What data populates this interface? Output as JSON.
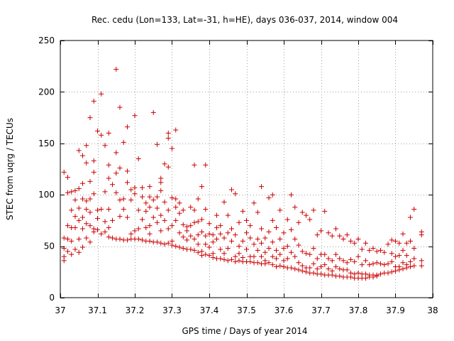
{
  "chart_data": {
    "type": "scatter",
    "title": "Rec. cedu (Lon=133, Lat=-31, h=HE), days 036-037, 2014, window 004",
    "xlabel": "GPS time / Days of year 2014",
    "ylabel": "STEC from uqrg / TECUs",
    "xlim": [
      37,
      38
    ],
    "ylim": [
      0,
      250
    ],
    "xticks": [
      37,
      37.1,
      37.2,
      37.3,
      37.4,
      37.5,
      37.6,
      37.7,
      37.8,
      37.9,
      38
    ],
    "xtick_labels": [
      "37",
      "37.1",
      "37.2",
      "37.3",
      "37.4",
      "37.5",
      "37.6",
      "37.7",
      "37.8",
      "37.9",
      "38"
    ],
    "yticks": [
      0,
      50,
      100,
      150,
      200,
      250
    ],
    "ytick_labels": [
      "0",
      "50",
      "100",
      "150",
      "200",
      "250"
    ],
    "grid": true,
    "marker": "+",
    "color": "#cc0000",
    "points": [
      [
        37.01,
        122
      ],
      [
        37.01,
        58
      ],
      [
        37.01,
        48
      ],
      [
        37.01,
        40
      ],
      [
        37.01,
        36
      ],
      [
        37.02,
        117
      ],
      [
        37.02,
        102
      ],
      [
        37.02,
        70
      ],
      [
        37.02,
        57
      ],
      [
        37.02,
        45
      ],
      [
        37.03,
        103
      ],
      [
        37.03,
        85
      ],
      [
        37.03,
        68
      ],
      [
        37.03,
        55
      ],
      [
        37.03,
        42
      ],
      [
        37.04,
        104
      ],
      [
        37.04,
        95
      ],
      [
        37.04,
        79
      ],
      [
        37.04,
        68
      ],
      [
        37.04,
        47
      ],
      [
        37.05,
        143
      ],
      [
        37.05,
        106
      ],
      [
        37.05,
        87
      ],
      [
        37.05,
        75
      ],
      [
        37.05,
        57
      ],
      [
        37.05,
        44
      ],
      [
        37.06,
        138
      ],
      [
        37.06,
        111
      ],
      [
        37.06,
        96
      ],
      [
        37.06,
        78
      ],
      [
        37.06,
        67
      ],
      [
        37.06,
        49
      ],
      [
        37.07,
        148
      ],
      [
        37.07,
        131
      ],
      [
        37.07,
        94
      ],
      [
        37.07,
        86
      ],
      [
        37.07,
        72
      ],
      [
        37.07,
        58
      ],
      [
        37.08,
        175
      ],
      [
        37.08,
        113
      ],
      [
        37.08,
        96
      ],
      [
        37.08,
        83
      ],
      [
        37.08,
        70
      ],
      [
        37.08,
        54
      ],
      [
        37.09,
        191
      ],
      [
        37.09,
        133
      ],
      [
        37.09,
        122
      ],
      [
        37.09,
        101
      ],
      [
        37.09,
        67
      ],
      [
        37.09,
        64
      ],
      [
        37.1,
        162
      ],
      [
        37.1,
        85
      ],
      [
        37.1,
        77
      ],
      [
        37.1,
        66
      ],
      [
        37.11,
        198
      ],
      [
        37.11,
        158
      ],
      [
        37.11,
        86
      ],
      [
        37.11,
        62
      ],
      [
        37.12,
        148
      ],
      [
        37.12,
        103
      ],
      [
        37.12,
        74
      ],
      [
        37.12,
        64
      ],
      [
        37.13,
        160
      ],
      [
        37.13,
        129
      ],
      [
        37.13,
        116
      ],
      [
        37.13,
        86
      ],
      [
        37.13,
        68
      ],
      [
        37.13,
        59
      ],
      [
        37.14,
        110
      ],
      [
        37.14,
        75
      ],
      [
        37.14,
        58
      ],
      [
        37.15,
        222
      ],
      [
        37.15,
        141
      ],
      [
        37.15,
        121
      ],
      [
        37.15,
        102
      ],
      [
        37.15,
        57
      ],
      [
        37.16,
        185
      ],
      [
        37.16,
        126
      ],
      [
        37.16,
        95
      ],
      [
        37.16,
        79
      ],
      [
        37.16,
        57
      ],
      [
        37.17,
        151
      ],
      [
        37.17,
        96
      ],
      [
        37.17,
        86
      ],
      [
        37.17,
        56
      ],
      [
        37.18,
        166
      ],
      [
        37.18,
        123
      ],
      [
        37.18,
        112
      ],
      [
        37.18,
        78
      ],
      [
        37.18,
        56
      ],
      [
        37.19,
        105
      ],
      [
        37.19,
        95
      ],
      [
        37.19,
        62
      ],
      [
        37.19,
        57
      ],
      [
        37.2,
        177
      ],
      [
        37.2,
        107
      ],
      [
        37.2,
        101
      ],
      [
        37.2,
        65
      ],
      [
        37.2,
        57
      ],
      [
        37.21,
        135
      ],
      [
        37.21,
        85
      ],
      [
        37.21,
        67
      ],
      [
        37.21,
        57
      ],
      [
        37.22,
        107
      ],
      [
        37.22,
        98
      ],
      [
        37.22,
        76
      ],
      [
        37.22,
        56
      ],
      [
        37.23,
        92
      ],
      [
        37.23,
        84
      ],
      [
        37.23,
        68
      ],
      [
        37.23,
        55
      ],
      [
        37.24,
        108
      ],
      [
        37.24,
        98
      ],
      [
        37.24,
        88
      ],
      [
        37.24,
        70
      ],
      [
        37.24,
        62
      ],
      [
        37.24,
        55
      ],
      [
        37.25,
        180
      ],
      [
        37.25,
        95
      ],
      [
        37.25,
        78
      ],
      [
        37.25,
        54
      ],
      [
        37.26,
        149
      ],
      [
        37.26,
        98
      ],
      [
        37.26,
        87
      ],
      [
        37.26,
        73
      ],
      [
        37.26,
        54
      ],
      [
        37.27,
        116
      ],
      [
        37.27,
        112
      ],
      [
        37.27,
        104
      ],
      [
        37.27,
        80
      ],
      [
        37.27,
        65
      ],
      [
        37.27,
        53
      ],
      [
        37.28,
        130
      ],
      [
        37.28,
        93
      ],
      [
        37.28,
        75
      ],
      [
        37.28,
        52
      ],
      [
        37.29,
        160
      ],
      [
        37.29,
        155
      ],
      [
        37.29,
        127
      ],
      [
        37.29,
        85
      ],
      [
        37.29,
        67
      ],
      [
        37.29,
        53
      ],
      [
        37.3,
        145
      ],
      [
        37.3,
        97
      ],
      [
        37.3,
        70
      ],
      [
        37.3,
        55
      ],
      [
        37.3,
        51
      ],
      [
        37.31,
        163
      ],
      [
        37.31,
        96
      ],
      [
        37.31,
        88
      ],
      [
        37.31,
        75
      ],
      [
        37.31,
        50
      ],
      [
        37.32,
        92
      ],
      [
        37.32,
        82
      ],
      [
        37.32,
        63
      ],
      [
        37.32,
        49
      ],
      [
        37.33,
        85
      ],
      [
        37.33,
        71
      ],
      [
        37.33,
        59
      ],
      [
        37.33,
        48
      ],
      [
        37.34,
        69
      ],
      [
        37.34,
        65
      ],
      [
        37.34,
        56
      ],
      [
        37.34,
        47
      ],
      [
        37.35,
        88
      ],
      [
        37.35,
        70
      ],
      [
        37.35,
        60
      ],
      [
        37.35,
        47
      ],
      [
        37.36,
        129
      ],
      [
        37.36,
        85
      ],
      [
        37.36,
        73
      ],
      [
        37.36,
        57
      ],
      [
        37.36,
        46
      ],
      [
        37.37,
        96
      ],
      [
        37.37,
        74
      ],
      [
        37.37,
        61
      ],
      [
        37.37,
        52
      ],
      [
        37.37,
        44
      ],
      [
        37.38,
        108
      ],
      [
        37.38,
        76
      ],
      [
        37.38,
        64
      ],
      [
        37.38,
        45
      ],
      [
        37.38,
        41
      ],
      [
        37.39,
        129
      ],
      [
        37.39,
        86
      ],
      [
        37.39,
        60
      ],
      [
        37.39,
        52
      ],
      [
        37.39,
        42
      ],
      [
        37.4,
        72
      ],
      [
        37.4,
        62
      ],
      [
        37.4,
        49
      ],
      [
        37.4,
        41
      ],
      [
        37.41,
        61
      ],
      [
        37.41,
        54
      ],
      [
        37.41,
        43
      ],
      [
        37.41,
        39
      ],
      [
        37.42,
        80
      ],
      [
        37.42,
        68
      ],
      [
        37.42,
        57
      ],
      [
        37.42,
        38
      ],
      [
        37.43,
        70
      ],
      [
        37.43,
        62
      ],
      [
        37.43,
        47
      ],
      [
        37.43,
        38
      ],
      [
        37.44,
        93
      ],
      [
        37.44,
        58
      ],
      [
        37.44,
        43
      ],
      [
        37.44,
        37
      ],
      [
        37.45,
        80
      ],
      [
        37.45,
        63
      ],
      [
        37.45,
        48
      ],
      [
        37.45,
        36
      ],
      [
        37.46,
        105
      ],
      [
        37.46,
        67
      ],
      [
        37.46,
        55
      ],
      [
        37.46,
        37
      ],
      [
        37.47,
        101
      ],
      [
        37.47,
        61
      ],
      [
        37.47,
        40
      ],
      [
        37.47,
        35
      ],
      [
        37.48,
        73
      ],
      [
        37.48,
        50
      ],
      [
        37.48,
        43
      ],
      [
        37.48,
        36
      ],
      [
        37.49,
        84
      ],
      [
        37.49,
        55
      ],
      [
        37.49,
        39
      ],
      [
        37.49,
        35
      ],
      [
        37.5,
        75
      ],
      [
        37.5,
        63
      ],
      [
        37.5,
        47
      ],
      [
        37.5,
        35
      ],
      [
        37.51,
        70
      ],
      [
        37.51,
        58
      ],
      [
        37.51,
        40
      ],
      [
        37.51,
        35
      ],
      [
        37.52,
        92
      ],
      [
        37.52,
        52
      ],
      [
        37.52,
        40
      ],
      [
        37.52,
        34
      ],
      [
        37.53,
        83
      ],
      [
        37.53,
        57
      ],
      [
        37.53,
        46
      ],
      [
        37.53,
        34
      ],
      [
        37.54,
        108
      ],
      [
        37.54,
        67
      ],
      [
        37.54,
        53
      ],
      [
        37.54,
        40
      ],
      [
        37.54,
        33
      ],
      [
        37.55,
        58
      ],
      [
        37.55,
        44
      ],
      [
        37.55,
        36
      ],
      [
        37.55,
        33
      ],
      [
        37.56,
        97
      ],
      [
        37.56,
        64
      ],
      [
        37.56,
        48
      ],
      [
        37.56,
        34
      ],
      [
        37.57,
        100
      ],
      [
        37.57,
        75
      ],
      [
        37.57,
        54
      ],
      [
        37.57,
        40
      ],
      [
        37.57,
        32
      ],
      [
        37.58,
        68
      ],
      [
        37.58,
        46
      ],
      [
        37.58,
        38
      ],
      [
        37.58,
        30
      ],
      [
        37.59,
        85
      ],
      [
        37.59,
        57
      ],
      [
        37.59,
        42
      ],
      [
        37.59,
        31
      ],
      [
        37.6,
        63
      ],
      [
        37.6,
        48
      ],
      [
        37.6,
        36
      ],
      [
        37.6,
        30
      ],
      [
        37.61,
        76
      ],
      [
        37.61,
        50
      ],
      [
        37.61,
        38
      ],
      [
        37.61,
        29
      ],
      [
        37.62,
        100
      ],
      [
        37.62,
        66
      ],
      [
        37.62,
        44
      ],
      [
        37.62,
        29
      ],
      [
        37.63,
        88
      ],
      [
        37.63,
        57
      ],
      [
        37.63,
        40
      ],
      [
        37.63,
        28
      ],
      [
        37.64,
        73
      ],
      [
        37.64,
        51
      ],
      [
        37.64,
        34
      ],
      [
        37.64,
        27
      ],
      [
        37.65,
        83
      ],
      [
        37.65,
        45
      ],
      [
        37.65,
        31
      ],
      [
        37.65,
        26
      ],
      [
        37.66,
        80
      ],
      [
        37.66,
        43
      ],
      [
        37.66,
        29
      ],
      [
        37.66,
        25
      ],
      [
        37.67,
        76
      ],
      [
        37.67,
        42
      ],
      [
        37.67,
        29
      ],
      [
        37.67,
        24
      ],
      [
        37.68,
        85
      ],
      [
        37.68,
        48
      ],
      [
        37.68,
        33
      ],
      [
        37.68,
        24
      ],
      [
        37.69,
        61
      ],
      [
        37.69,
        38
      ],
      [
        37.69,
        28
      ],
      [
        37.69,
        23
      ],
      [
        37.7,
        65
      ],
      [
        37.7,
        42
      ],
      [
        37.7,
        30
      ],
      [
        37.7,
        23
      ],
      [
        37.71,
        84
      ],
      [
        37.71,
        42
      ],
      [
        37.71,
        32
      ],
      [
        37.71,
        22
      ],
      [
        37.72,
        63
      ],
      [
        37.72,
        38
      ],
      [
        37.72,
        28
      ],
      [
        37.72,
        22
      ],
      [
        37.73,
        60
      ],
      [
        37.73,
        36
      ],
      [
        37.73,
        26
      ],
      [
        37.73,
        22
      ],
      [
        37.74,
        67
      ],
      [
        37.74,
        42
      ],
      [
        37.74,
        30
      ],
      [
        37.74,
        21
      ],
      [
        37.75,
        60
      ],
      [
        37.75,
        38
      ],
      [
        37.75,
        28
      ],
      [
        37.75,
        21
      ],
      [
        37.76,
        57
      ],
      [
        37.76,
        36
      ],
      [
        37.76,
        27
      ],
      [
        37.76,
        20
      ],
      [
        37.77,
        61
      ],
      [
        37.77,
        34
      ],
      [
        37.77,
        27
      ],
      [
        37.77,
        20
      ],
      [
        37.78,
        55
      ],
      [
        37.78,
        37
      ],
      [
        37.78,
        24
      ],
      [
        37.78,
        20
      ],
      [
        37.79,
        53
      ],
      [
        37.79,
        35
      ],
      [
        37.79,
        23
      ],
      [
        37.79,
        19
      ],
      [
        37.8,
        57
      ],
      [
        37.8,
        40
      ],
      [
        37.8,
        24
      ],
      [
        37.8,
        19
      ],
      [
        37.81,
        47
      ],
      [
        37.81,
        32
      ],
      [
        37.81,
        23
      ],
      [
        37.81,
        19
      ],
      [
        37.82,
        53
      ],
      [
        37.82,
        36
      ],
      [
        37.82,
        23
      ],
      [
        37.82,
        19
      ],
      [
        37.83,
        46
      ],
      [
        37.83,
        32
      ],
      [
        37.83,
        22
      ],
      [
        37.83,
        20
      ],
      [
        37.84,
        48
      ],
      [
        37.84,
        33
      ],
      [
        37.84,
        22
      ],
      [
        37.84,
        20
      ],
      [
        37.85,
        45
      ],
      [
        37.85,
        34
      ],
      [
        37.85,
        22
      ],
      [
        37.85,
        21
      ],
      [
        37.86,
        46
      ],
      [
        37.86,
        33
      ],
      [
        37.86,
        23
      ],
      [
        37.87,
        44
      ],
      [
        37.87,
        32
      ],
      [
        37.87,
        24
      ],
      [
        37.88,
        52
      ],
      [
        37.88,
        33
      ],
      [
        37.88,
        24
      ],
      [
        37.89,
        56
      ],
      [
        37.89,
        43
      ],
      [
        37.89,
        35
      ],
      [
        37.89,
        25
      ],
      [
        37.9,
        55
      ],
      [
        37.9,
        40
      ],
      [
        37.9,
        30
      ],
      [
        37.9,
        26
      ],
      [
        37.91,
        53
      ],
      [
        37.91,
        41
      ],
      [
        37.91,
        30
      ],
      [
        37.91,
        27
      ],
      [
        37.92,
        62
      ],
      [
        37.92,
        46
      ],
      [
        37.92,
        34
      ],
      [
        37.92,
        28
      ],
      [
        37.93,
        53
      ],
      [
        37.93,
        41
      ],
      [
        37.93,
        32
      ],
      [
        37.93,
        29
      ],
      [
        37.94,
        78
      ],
      [
        37.94,
        55
      ],
      [
        37.94,
        35
      ],
      [
        37.94,
        30
      ],
      [
        37.95,
        86
      ],
      [
        37.95,
        48
      ],
      [
        37.95,
        38
      ],
      [
        37.95,
        31
      ],
      [
        37.97,
        64
      ],
      [
        37.97,
        61
      ],
      [
        37.97,
        36
      ],
      [
        37.97,
        31
      ]
    ]
  }
}
